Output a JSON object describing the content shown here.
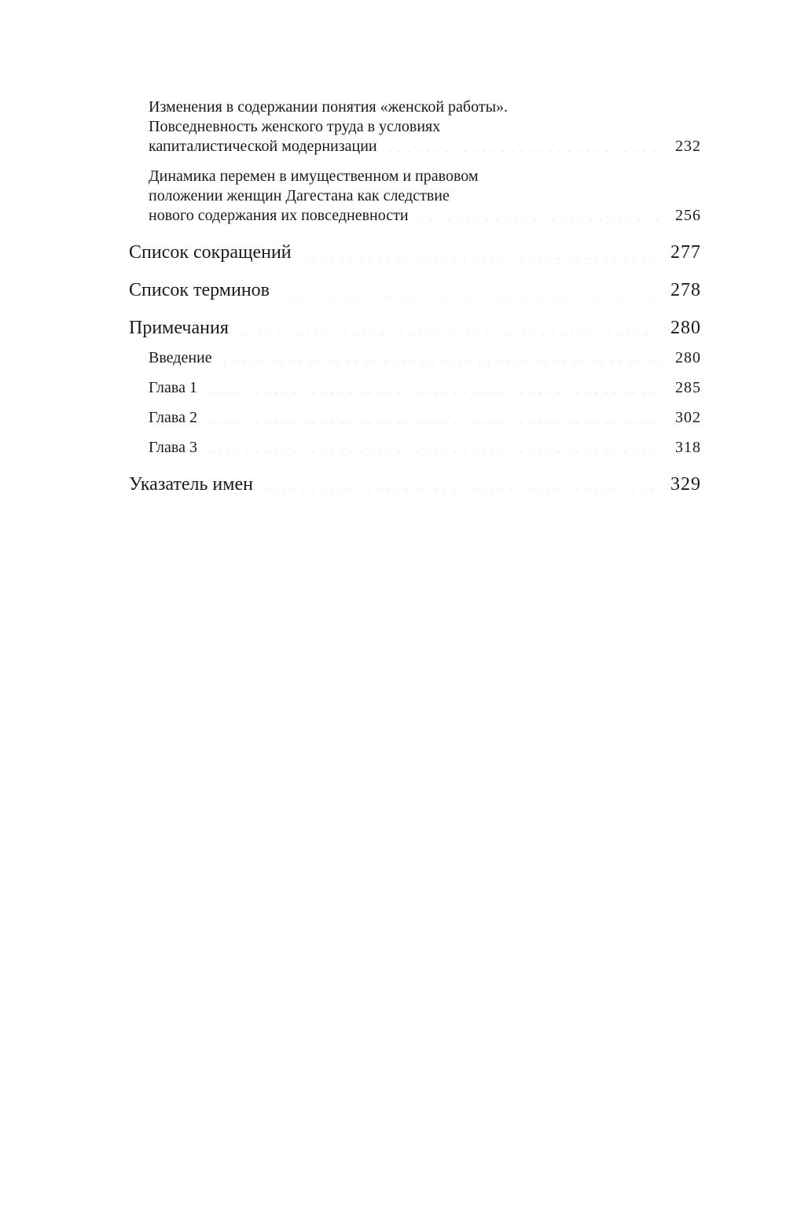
{
  "toc": [
    {
      "level": "sub",
      "lines": [
        "Изменения в содержании понятия «женской работы».",
        "Повседневность женского труда в условиях",
        "капиталистической модернизации"
      ],
      "page": "232"
    },
    {
      "level": "sub",
      "lines": [
        "Динамика перемен в имущественном и правовом",
        "положении женщин Дагестана как следствие",
        "нового содержания их повседневности"
      ],
      "page": "256"
    },
    {
      "level": "main",
      "lines": [
        "Список сокращений"
      ],
      "page": "277"
    },
    {
      "level": "main",
      "lines": [
        "Список терминов"
      ],
      "page": "278"
    },
    {
      "level": "main",
      "lines": [
        "Примечания"
      ],
      "page": "280"
    },
    {
      "level": "sub",
      "lines": [
        "Введение"
      ],
      "page": "280"
    },
    {
      "level": "sub",
      "lines": [
        "Глава 1"
      ],
      "page": "285"
    },
    {
      "level": "sub",
      "lines": [
        "Глава 2"
      ],
      "page": "302"
    },
    {
      "level": "sub",
      "lines": [
        "Глава 3"
      ],
      "page": "318"
    },
    {
      "level": "main",
      "lines": [
        "Указатель имен"
      ],
      "page": "329"
    }
  ]
}
